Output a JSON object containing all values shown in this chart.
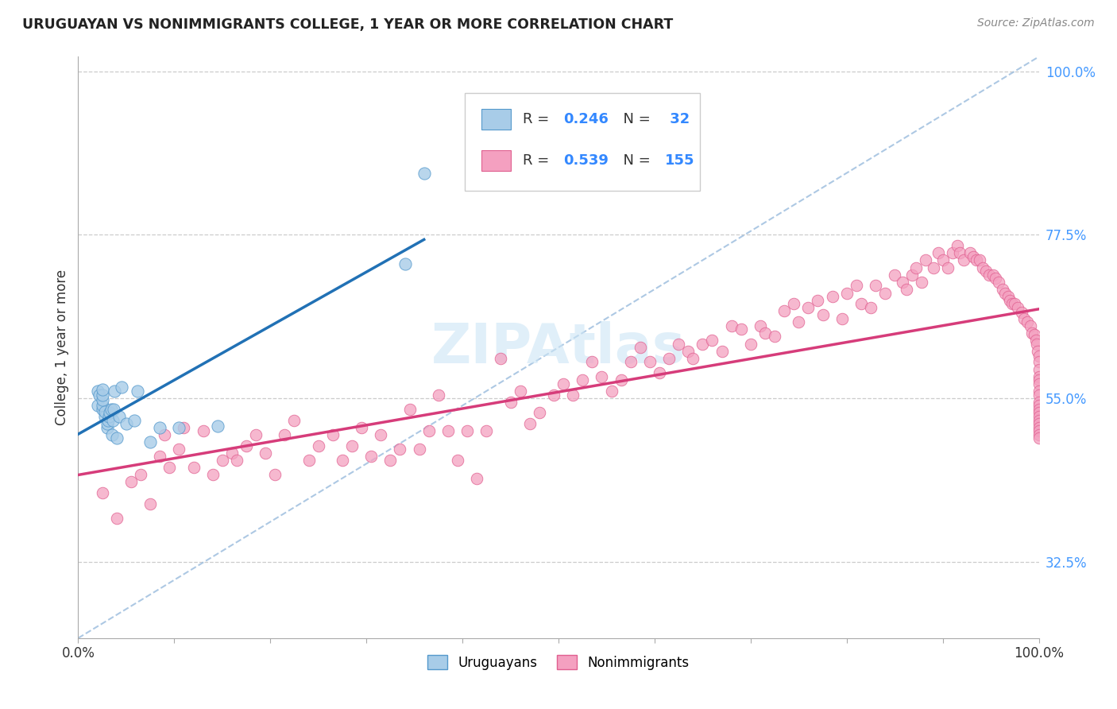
{
  "title": "URUGUAYAN VS NONIMMIGRANTS COLLEGE, 1 YEAR OR MORE CORRELATION CHART",
  "source": "Source: ZipAtlas.com",
  "ylabel": "College, 1 year or more",
  "y_min": 0.22,
  "y_max": 1.02,
  "x_min": 0.0,
  "x_max": 1.0,
  "y_ticks": [
    0.325,
    0.55,
    0.775,
    1.0
  ],
  "y_tick_labels": [
    "32.5%",
    "55.0%",
    "77.5%",
    "100.0%"
  ],
  "x_tick_left": "0.0%",
  "x_tick_right": "100.0%",
  "blue_face": "#a8cce8",
  "blue_edge": "#5599cc",
  "pink_face": "#f4a0c0",
  "pink_edge": "#e06090",
  "line_blue": "#2171b5",
  "line_pink": "#d63c7a",
  "dashed_color": "#99bbdd",
  "grid_color": "#cccccc",
  "right_tick_color": "#4499ff",
  "watermark_color": "#cce5f5",
  "legend_r1": "R = 0.246",
  "legend_n1": "N =  32",
  "legend_r2": "R = 0.539",
  "legend_n2": "N = 155",
  "legend_text_color": "#333333",
  "legend_num_color": "#3388ff",
  "uru_x": [
    0.02,
    0.02,
    0.022,
    0.025,
    0.025,
    0.025,
    0.025,
    0.025,
    0.028,
    0.028,
    0.03,
    0.03,
    0.031,
    0.032,
    0.033,
    0.034,
    0.035,
    0.036,
    0.037,
    0.038,
    0.04,
    0.043,
    0.045,
    0.05,
    0.058,
    0.062,
    0.075,
    0.085,
    0.105,
    0.145,
    0.34,
    0.36
  ],
  "uru_y": [
    0.54,
    0.56,
    0.555,
    0.535,
    0.54,
    0.548,
    0.555,
    0.562,
    0.525,
    0.532,
    0.51,
    0.515,
    0.52,
    0.525,
    0.53,
    0.535,
    0.5,
    0.52,
    0.535,
    0.56,
    0.495,
    0.525,
    0.565,
    0.515,
    0.52,
    0.56,
    0.49,
    0.51,
    0.51,
    0.512,
    0.735,
    0.86
  ],
  "non_x": [
    0.025,
    0.04,
    0.055,
    0.065,
    0.075,
    0.085,
    0.09,
    0.095,
    0.105,
    0.11,
    0.12,
    0.13,
    0.14,
    0.15,
    0.16,
    0.165,
    0.175,
    0.185,
    0.195,
    0.205,
    0.215,
    0.225,
    0.24,
    0.25,
    0.265,
    0.275,
    0.285,
    0.295,
    0.305,
    0.315,
    0.325,
    0.335,
    0.345,
    0.355,
    0.365,
    0.375,
    0.385,
    0.395,
    0.405,
    0.415,
    0.425,
    0.44,
    0.45,
    0.46,
    0.47,
    0.48,
    0.495,
    0.505,
    0.515,
    0.525,
    0.535,
    0.545,
    0.555,
    0.565,
    0.575,
    0.585,
    0.595,
    0.605,
    0.615,
    0.625,
    0.635,
    0.64,
    0.65,
    0.66,
    0.67,
    0.68,
    0.69,
    0.7,
    0.71,
    0.715,
    0.725,
    0.735,
    0.745,
    0.75,
    0.76,
    0.77,
    0.775,
    0.785,
    0.795,
    0.8,
    0.81,
    0.815,
    0.825,
    0.83,
    0.84,
    0.85,
    0.858,
    0.862,
    0.868,
    0.872,
    0.878,
    0.882,
    0.89,
    0.895,
    0.9,
    0.905,
    0.91,
    0.915,
    0.918,
    0.922,
    0.928,
    0.932,
    0.935,
    0.938,
    0.942,
    0.945,
    0.948,
    0.952,
    0.955,
    0.958,
    0.962,
    0.965,
    0.968,
    0.97,
    0.972,
    0.975,
    0.978,
    0.982,
    0.985,
    0.988,
    0.991,
    0.993,
    0.995,
    0.997,
    0.998,
    0.999,
    1.0,
    1.0,
    1.0,
    1.0,
    1.0,
    1.0,
    1.0,
    1.0,
    1.0,
    1.0,
    1.0,
    1.0,
    1.0,
    1.0,
    1.0,
    1.0,
    1.0,
    1.0,
    1.0
  ],
  "non_y": [
    0.42,
    0.385,
    0.435,
    0.445,
    0.405,
    0.47,
    0.5,
    0.455,
    0.48,
    0.51,
    0.455,
    0.505,
    0.445,
    0.465,
    0.475,
    0.465,
    0.485,
    0.5,
    0.475,
    0.445,
    0.5,
    0.52,
    0.465,
    0.485,
    0.5,
    0.465,
    0.485,
    0.51,
    0.47,
    0.5,
    0.465,
    0.48,
    0.535,
    0.48,
    0.505,
    0.555,
    0.505,
    0.465,
    0.505,
    0.44,
    0.505,
    0.605,
    0.545,
    0.56,
    0.515,
    0.53,
    0.555,
    0.57,
    0.555,
    0.575,
    0.6,
    0.58,
    0.56,
    0.575,
    0.6,
    0.62,
    0.6,
    0.585,
    0.605,
    0.625,
    0.615,
    0.605,
    0.625,
    0.63,
    0.615,
    0.65,
    0.645,
    0.625,
    0.65,
    0.64,
    0.635,
    0.67,
    0.68,
    0.655,
    0.675,
    0.685,
    0.665,
    0.69,
    0.66,
    0.695,
    0.705,
    0.68,
    0.675,
    0.705,
    0.695,
    0.72,
    0.71,
    0.7,
    0.72,
    0.73,
    0.71,
    0.74,
    0.73,
    0.75,
    0.74,
    0.73,
    0.75,
    0.76,
    0.75,
    0.74,
    0.75,
    0.745,
    0.74,
    0.74,
    0.73,
    0.725,
    0.72,
    0.72,
    0.715,
    0.71,
    0.7,
    0.695,
    0.69,
    0.685,
    0.68,
    0.68,
    0.675,
    0.668,
    0.66,
    0.655,
    0.65,
    0.64,
    0.638,
    0.63,
    0.625,
    0.615,
    0.608,
    0.6,
    0.59,
    0.58,
    0.575,
    0.57,
    0.56,
    0.555,
    0.545,
    0.54,
    0.535,
    0.53,
    0.525,
    0.52,
    0.515,
    0.51,
    0.505,
    0.5,
    0.495
  ]
}
